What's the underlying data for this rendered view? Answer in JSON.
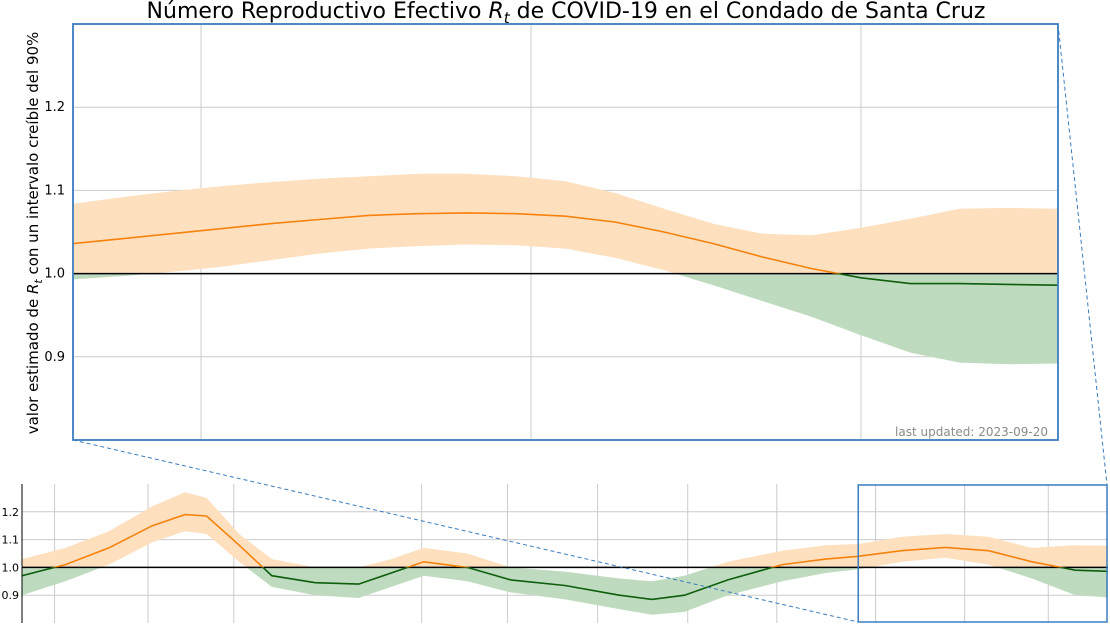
{
  "chart_data": [
    {
      "type": "area",
      "panel": "zoom",
      "title_pre": "Número Reproductivo Efectivo ",
      "title_sym": "R",
      "title_sub": "t",
      "title_post": " de COVID-19 en el Condado de Santa Cruz",
      "ylabel_pre": "valor estimado de ",
      "ylabel_sym": "R",
      "ylabel_sub": "t",
      "ylabel_post": " con un intervalo creíble del 90%",
      "yticks": [
        0.9,
        1.0,
        1.1,
        1.2
      ],
      "ylim": [
        0.8,
        1.3
      ],
      "xlim": [
        0,
        100
      ],
      "annotation": "last updated: 2023-09-20",
      "reference_line": 1.0,
      "grid": true,
      "colors": {
        "above": "#f5820d",
        "above_band": "#fee0bf",
        "below": "#0d5e0d",
        "below_band": "#bfdbbf",
        "ref": "#000000",
        "frame": "#3a7dc0"
      },
      "series": [
        {
          "x": [
            0,
            5,
            10,
            15,
            20,
            25,
            30,
            35,
            40,
            45,
            50,
            55,
            60,
            65,
            70,
            75,
            80,
            85,
            90,
            95,
            100
          ],
          "mean": [
            1.036,
            1.042,
            1.048,
            1.054,
            1.06,
            1.065,
            1.07,
            1.072,
            1.073,
            1.072,
            1.069,
            1.062,
            1.05,
            1.036,
            1.02,
            1.006,
            0.995,
            0.988,
            0.988,
            0.987,
            0.986
          ],
          "upper": [
            1.084,
            1.092,
            1.099,
            1.105,
            1.11,
            1.114,
            1.117,
            1.12,
            1.12,
            1.117,
            1.111,
            1.097,
            1.078,
            1.06,
            1.048,
            1.046,
            1.055,
            1.066,
            1.078,
            1.079,
            1.078
          ],
          "lower": [
            0.993,
            0.997,
            1.002,
            1.008,
            1.016,
            1.024,
            1.03,
            1.033,
            1.035,
            1.034,
            1.03,
            1.019,
            1.004,
            0.986,
            0.967,
            0.948,
            0.926,
            0.905,
            0.893,
            0.891,
            0.892
          ]
        }
      ]
    },
    {
      "type": "area",
      "panel": "overview",
      "yticks": [
        0.9,
        1.0,
        1.1,
        1.2
      ],
      "ylim": [
        0.8,
        1.3
      ],
      "xlim": [
        0,
        100
      ],
      "zoom_window": [
        77,
        100
      ],
      "reference_line": 1.0,
      "grid": true,
      "series": [
        {
          "x": [
            0,
            4,
            8,
            12,
            15,
            17,
            20,
            23,
            27,
            31,
            34,
            37,
            41,
            45,
            50,
            55,
            58,
            61,
            65,
            70,
            74,
            77,
            81,
            85,
            89,
            93,
            97,
            100
          ],
          "mean": [
            0.97,
            1.01,
            1.07,
            1.15,
            1.19,
            1.185,
            1.08,
            0.97,
            0.945,
            0.94,
            0.98,
            1.02,
            1.0,
            0.955,
            0.935,
            0.9,
            0.885,
            0.9,
            0.955,
            1.01,
            1.03,
            1.04,
            1.06,
            1.072,
            1.06,
            1.02,
            0.99,
            0.986
          ],
          "upper": [
            1.03,
            1.07,
            1.13,
            1.22,
            1.27,
            1.25,
            1.12,
            1.03,
            1.0,
            1.0,
            1.03,
            1.07,
            1.05,
            1.0,
            0.985,
            0.96,
            0.95,
            0.97,
            1.02,
            1.06,
            1.08,
            1.084,
            1.11,
            1.12,
            1.11,
            1.07,
            1.08,
            1.078
          ],
          "lower": [
            0.9,
            0.95,
            1.01,
            1.09,
            1.13,
            1.12,
            1.02,
            0.93,
            0.9,
            0.89,
            0.93,
            0.97,
            0.95,
            0.91,
            0.885,
            0.85,
            0.83,
            0.84,
            0.9,
            0.95,
            0.98,
            0.993,
            1.02,
            1.035,
            1.01,
            0.96,
            0.9,
            0.892
          ]
        }
      ]
    }
  ]
}
